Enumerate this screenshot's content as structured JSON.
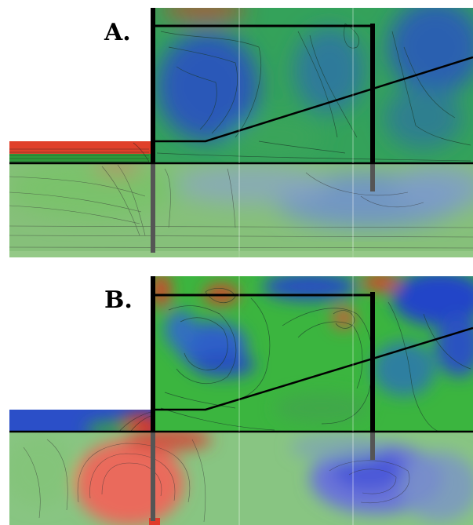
{
  "figure": {
    "panels": [
      {
        "label": "A."
      },
      {
        "label": "B."
      }
    ],
    "colors": {
      "high": "#e8392a",
      "mid": "#3fb83a",
      "low": "#2140c8",
      "lower_layer_tint": "#8fc7a8",
      "structure": "#000000",
      "pile_shaft": "#555555"
    }
  }
}
